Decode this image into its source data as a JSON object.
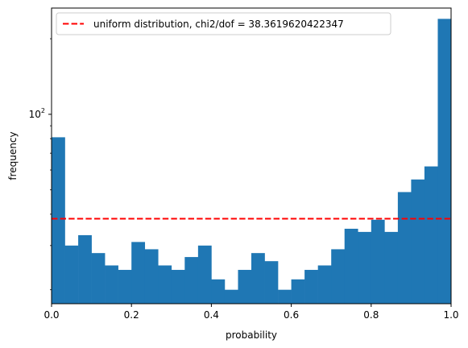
{
  "chart_data": {
    "type": "bar",
    "xlabel": "probability",
    "ylabel": "frequency",
    "xlim": [
      0.0,
      1.0
    ],
    "ylim": [
      17.6,
      265
    ],
    "yscale": "log",
    "xticks": [
      "0.0",
      "0.2",
      "0.4",
      "0.6",
      "0.8",
      "1.0"
    ],
    "xtick_values": [
      0.0,
      0.2,
      0.4,
      0.6,
      0.8,
      1.0
    ],
    "yticks": [
      {
        "base": "10",
        "exp": "2",
        "value": 100
      }
    ],
    "minor_yticks": [
      20,
      30,
      40,
      50,
      60,
      70,
      80,
      90,
      200
    ],
    "bin_width": 0.0333333,
    "bins": [
      0.0,
      0.0333,
      0.0667,
      0.1,
      0.1333,
      0.1667,
      0.2,
      0.2333,
      0.2667,
      0.3,
      0.3333,
      0.3667,
      0.4,
      0.4333,
      0.4667,
      0.5,
      0.5333,
      0.5667,
      0.6,
      0.6333,
      0.6667,
      0.7,
      0.7333,
      0.7667,
      0.8,
      0.8333,
      0.8667,
      0.9,
      0.9333,
      0.9667
    ],
    "values": [
      81,
      30,
      33,
      28,
      25,
      24,
      31,
      29,
      25,
      24,
      27,
      30,
      22,
      20,
      24,
      28,
      26,
      20,
      22,
      24,
      25,
      29,
      35,
      34,
      38,
      34,
      49,
      55,
      62,
      240
    ],
    "bar_color": "#1f77b4",
    "reference_line": {
      "y": 38.36,
      "color": "#ff0000",
      "style": "dashed",
      "label": "uniform distribution, chi2/dof = 38.3619620422347"
    },
    "legend_position": "upper left"
  }
}
